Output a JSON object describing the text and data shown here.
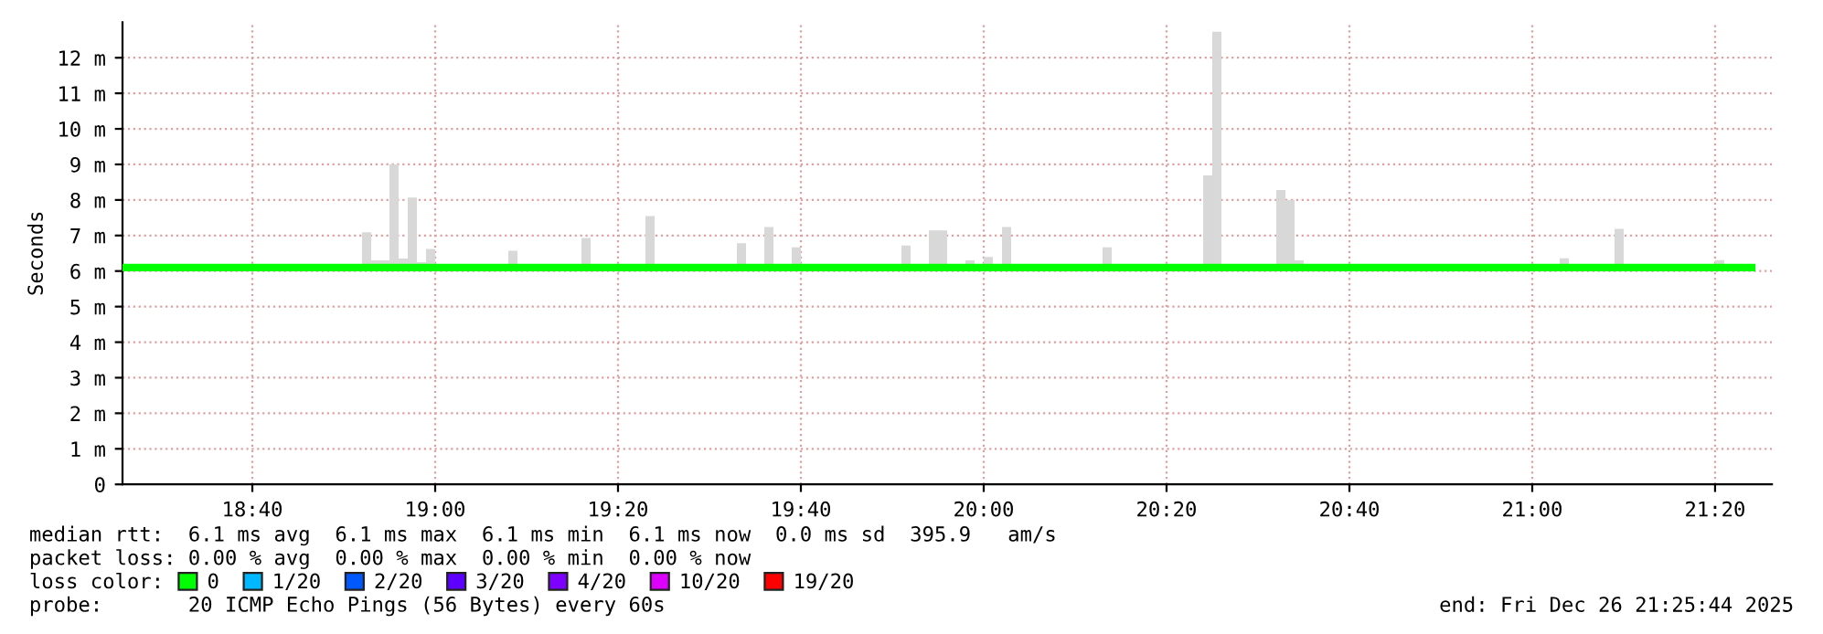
{
  "chart_data": {
    "type": "step",
    "ylabel": "Seconds",
    "legend_title": "loss color:",
    "legend": "bottom",
    "grid": true,
    "xlim": [
      18.43,
      21.437
    ],
    "xticks": [
      {
        "value": 18.6667,
        "label": "18:40"
      },
      {
        "value": 19.0,
        "label": "19:00"
      },
      {
        "value": 19.3333,
        "label": "19:20"
      },
      {
        "value": 19.6667,
        "label": "19:40"
      },
      {
        "value": 20.0,
        "label": "20:00"
      },
      {
        "value": 20.3333,
        "label": "20:20"
      },
      {
        "value": 20.6667,
        "label": "20:40"
      },
      {
        "value": 21.0,
        "label": "21:00"
      },
      {
        "value": 21.3333,
        "label": "21:20"
      }
    ],
    "ylim": [
      0,
      13
    ],
    "yticks": [
      0,
      {
        "value": 1,
        "label": "1 m"
      },
      {
        "value": 2,
        "label": "2 m"
      },
      {
        "value": 3,
        "label": "3 m"
      },
      {
        "value": 4,
        "label": "4 m"
      },
      {
        "value": 5,
        "label": "5 m"
      },
      {
        "value": 6,
        "label": "6 m"
      },
      {
        "value": 7,
        "label": "7 m"
      },
      {
        "value": 8,
        "label": "8 m"
      },
      {
        "value": 9,
        "label": "9 m"
      },
      {
        "value": 10,
        "label": "10 m"
      },
      {
        "value": 11,
        "label": "11 m"
      },
      {
        "value": 12,
        "label": "12 m"
      }
    ],
    "series": [
      {
        "name": "0",
        "color": "#00ff00",
        "x": [
          18.4333,
          18.8667,
          18.8833,
          18.9167,
          18.9333,
          18.95,
          18.9667,
          18.9833,
          19.0,
          19.1333,
          19.15,
          19.2667,
          19.2833,
          19.3833,
          19.4,
          19.55,
          19.5667,
          19.6,
          19.6167,
          19.65,
          19.6667,
          19.85,
          19.8667,
          19.9,
          19.9333,
          19.9667,
          19.9833,
          20.0,
          20.0167,
          20.0333,
          20.05,
          20.2167,
          20.2333,
          20.4,
          20.4167,
          20.4333,
          20.5333,
          20.55,
          20.5667,
          20.5833,
          21.05,
          21.0667,
          21.15,
          21.1667,
          21.3333,
          21.35,
          21.4
        ],
        "values": [
          6.1,
          6.1,
          6.1,
          6.1,
          6.1,
          6.1,
          6.1,
          6.1,
          6.1,
          6.1,
          6.1,
          6.1,
          6.1,
          6.1,
          6.1,
          6.1,
          6.1,
          6.1,
          6.1,
          6.1,
          6.1,
          6.1,
          6.1,
          6.1,
          6.1,
          6.1,
          6.1,
          6.1,
          6.1,
          6.1,
          6.1,
          6.1,
          6.1,
          6.1,
          6.1,
          6.1,
          6.1,
          6.1,
          6.1,
          6.1,
          6.1,
          6.1,
          6.1,
          6.1,
          6.1,
          6.1,
          6.1
        ],
        "lower": [
          6.0,
          6.0,
          6.0,
          6.0,
          6.0,
          6.0,
          6.0,
          6.0,
          6.0,
          6.0,
          6.0,
          6.0,
          6.0,
          6.0,
          6.0,
          6.0,
          6.0,
          6.0,
          6.0,
          6.0,
          6.0,
          6.0,
          6.0,
          6.0,
          6.0,
          6.0,
          6.0,
          6.0,
          6.0,
          6.0,
          6.0,
          6.0,
          6.0,
          6.0,
          6.0,
          6.0,
          6.0,
          6.0,
          6.0,
          6.0,
          6.0,
          6.0,
          6.0,
          6.0,
          6.0,
          6.0,
          6.0
        ],
        "upper": [
          6.2,
          7.09,
          6.3,
          9.0,
          6.35,
          8.07,
          6.25,
          6.62,
          6.2,
          6.57,
          6.2,
          6.93,
          6.2,
          7.55,
          6.2,
          6.78,
          6.2,
          7.24,
          6.2,
          6.67,
          6.2,
          6.72,
          6.2,
          7.14,
          6.2,
          6.3,
          6.2,
          6.4,
          6.2,
          7.24,
          6.2,
          6.67,
          6.2,
          8.69,
          12.73,
          6.2,
          8.28,
          8.0,
          6.3,
          6.2,
          6.36,
          6.2,
          7.19,
          6.2,
          6.31,
          6.2,
          6.2
        ]
      },
      {
        "name": "1/20",
        "color": "#00b8ff",
        "values": [
          null
        ]
      },
      {
        "name": "2/20",
        "color": "#0059ff",
        "values": [
          null
        ]
      },
      {
        "name": "3/20",
        "color": "#5e00ff",
        "values": [
          null
        ]
      },
      {
        "name": "4/20",
        "color": "#7e00ff",
        "values": [
          null
        ]
      },
      {
        "name": "10/20",
        "color": "#dd00ff",
        "values": [
          null
        ]
      },
      {
        "name": "19/20",
        "color": "#ff0000",
        "values": [
          null
        ]
      }
    ],
    "annotations": [
      "median rtt:  6.1 ms avg  6.1 ms max  6.1 ms min  6.1 ms now  0.0 ms sd  395.9   am/s",
      "packet loss: 0.00 % avg  0.00 % max  0.00 % min  0.00 % now",
      "probe:       20 ICMP Echo Pings (56 Bytes) every 60s",
      "end: Fri Dec 26 21:25:44 2025"
    ]
  }
}
